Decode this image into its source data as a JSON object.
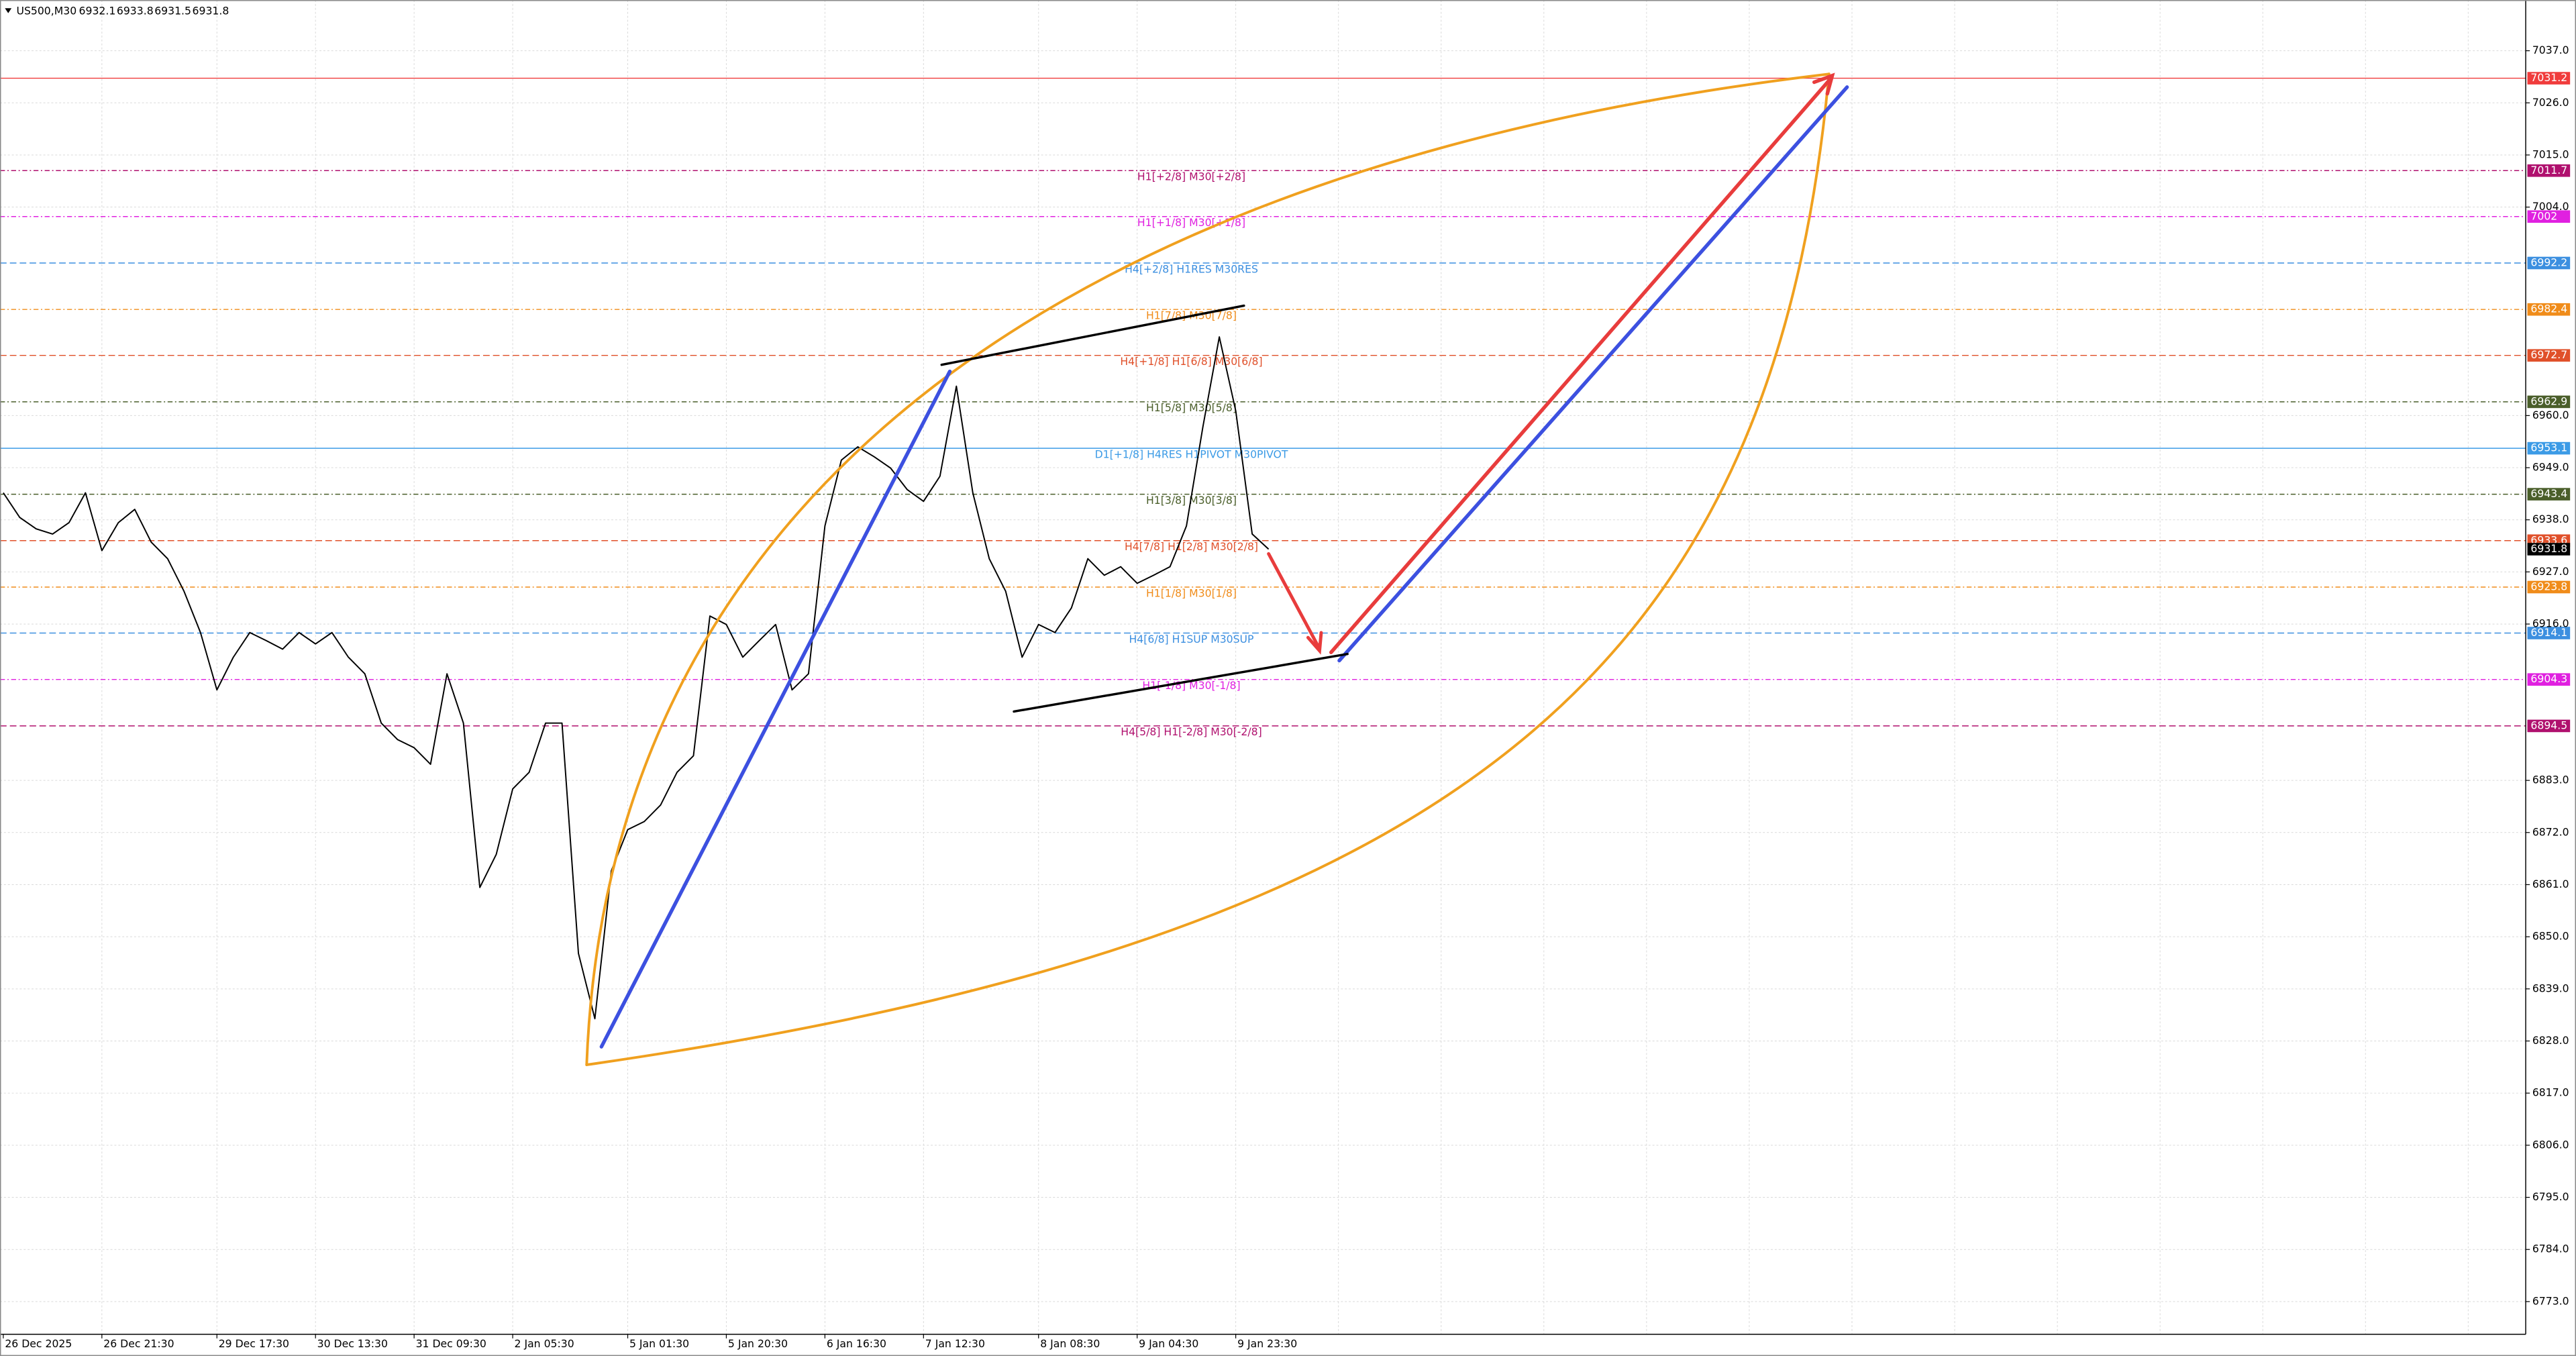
{
  "chart_data": {
    "type": "line",
    "symbol": "US500,M30",
    "ohlc": [
      6932.1,
      6933.8,
      6931.5,
      6931.8
    ],
    "categories": [
      "26 Dec 2025",
      null,
      null,
      null,
      null,
      null,
      "26 Dec 21:30",
      null,
      null,
      null,
      null,
      null,
      null,
      "29 Dec 17:30",
      null,
      null,
      null,
      null,
      null,
      "30 Dec 13:30",
      null,
      null,
      null,
      null,
      null,
      "31 Dec 09:30",
      null,
      null,
      null,
      null,
      null,
      "2 Jan 05:30",
      null,
      null,
      null,
      null,
      null,
      null,
      "5 Jan 01:30",
      null,
      null,
      null,
      null,
      null,
      "5 Jan 20:30",
      null,
      null,
      null,
      null,
      null,
      "6 Jan 16:30",
      null,
      null,
      null,
      null,
      null,
      "7 Jan 12:30",
      null,
      null,
      null,
      null,
      null,
      null,
      "8 Jan 08:30",
      null,
      null,
      null,
      null,
      null,
      "9 Jan 04:30",
      null,
      null,
      null,
      null,
      null,
      "9 Jan 23:30",
      null,
      null
    ],
    "series": [
      {
        "name": "US500,M30",
        "color": "#000000",
        "values": [
          6943.7,
          6938.5,
          6936.1,
          6935.0,
          6937.4,
          6943.7,
          6931.5,
          6937.4,
          6940.2,
          6933.3,
          6929.8,
          6922.9,
          6914.2,
          6902.1,
          6909.0,
          6914.2,
          6912.5,
          6910.7,
          6914.2,
          6911.8,
          6914.2,
          6909.0,
          6905.5,
          6895.1,
          6891.6,
          6889.9,
          6886.4,
          6905.5,
          6895.1,
          6860.4,
          6867.4,
          6881.2,
          6884.7,
          6895.1,
          6895.1,
          6846.5,
          6832.7,
          6863.9,
          6872.6,
          6874.3,
          6877.8,
          6884.7,
          6888.2,
          6917.7,
          6915.9,
          6909.0,
          6912.5,
          6915.9,
          6902.1,
          6905.5,
          6936.7,
          6950.6,
          6953.4,
          6951.3,
          6948.9,
          6944.4,
          6941.9,
          6947.2,
          6966.2,
          6943.7,
          6929.8,
          6922.9,
          6909.0,
          6915.9,
          6914.2,
          6919.4,
          6929.8,
          6926.3,
          6928.1,
          6924.6,
          6926.3,
          6928.1,
          6936.7,
          6957.6,
          6976.6,
          6961.0,
          6935.0,
          6931.8
        ]
      }
    ],
    "ylim": [
      6766.1,
      7047.7
    ],
    "yticks": [
      {
        "value": 7037,
        "label": "7037.0"
      },
      {
        "value": 7026,
        "label": "7026.0"
      },
      {
        "value": 7015,
        "label": "7015.0"
      },
      {
        "value": 7004,
        "label": "7004.0"
      },
      {
        "value": 6960,
        "label": "6960.0"
      },
      {
        "value": 6949,
        "label": "6949.0"
      },
      {
        "value": 6938,
        "label": "6938.0"
      },
      {
        "value": 6927,
        "label": "6927.0"
      },
      {
        "value": 6916,
        "label": "6916.0"
      },
      {
        "value": 6883,
        "label": "6883.0"
      },
      {
        "value": 6872,
        "label": "6872.0"
      },
      {
        "value": 6861,
        "label": "6861.0"
      },
      {
        "value": 6850,
        "label": "6850.0"
      },
      {
        "value": 6839,
        "label": "6839.0"
      },
      {
        "value": 6828,
        "label": "6828.0"
      },
      {
        "value": 6817,
        "label": "6817.0"
      },
      {
        "value": 6806,
        "label": "6806.0"
      },
      {
        "value": 6795,
        "label": "6795.0"
      },
      {
        "value": 6784,
        "label": "6784.0"
      },
      {
        "value": 6773,
        "label": "6773.0"
      }
    ],
    "grid": true,
    "levels": [
      {
        "name": null,
        "value": 7031.2,
        "color": "#f03c3c",
        "dash": "none"
      },
      {
        "name": "H1[+2/8] M30[+2/8]",
        "value": 7011.7,
        "color": "#b0106e",
        "dash": "3 1.5 0.8 1.5"
      },
      {
        "name": "H1[+1/8] M30[+1/8]",
        "value": 7002.0,
        "color": "#e020e0",
        "dash": "3 1.5 0.8 1.5"
      },
      {
        "name": "H4[+2/8] H1RES M30RES",
        "value": 6992.2,
        "color": "#3c8fe0",
        "dash": "4 2"
      },
      {
        "name": "H1[7/8] M30[7/8]",
        "value": 6982.4,
        "color": "#f08c1a",
        "dash": "3 1.5 0.8 1.5"
      },
      {
        "name": "H4[+1/8] H1[6/8] M30[6/8]",
        "value": 6972.7,
        "color": "#e0502a",
        "dash": "4 2"
      },
      {
        "name": "H1[5/8] M30[5/8]",
        "value": 6962.9,
        "color": "#4a5e2a",
        "dash": "3 1.5 0.8 1.5"
      },
      {
        "name": "D1[+1/8] H4RES H1PIVOT M30PIVOT",
        "value": 6953.1,
        "color": "#3c9be6",
        "dash": "none"
      },
      {
        "name": "H1[3/8] M30[3/8]",
        "value": 6943.4,
        "color": "#4a5e2a",
        "dash": "3 1.5 0.8 1.5"
      },
      {
        "name": "H4[7/8] H1[2/8] M30[2/8]",
        "value": 6933.6,
        "color": "#e0502a",
        "dash": "4 2"
      },
      {
        "name": "H1[1/8] M30[1/8]",
        "value": 6923.8,
        "color": "#f08c1a",
        "dash": "3 1.5 0.8 1.5"
      },
      {
        "name": "H4[6/8] H1SUP M30SUP",
        "value": 6914.1,
        "color": "#3c8fe0",
        "dash": "4 2"
      },
      {
        "name": "H1[-1/8] M30[-1/8]",
        "value": 6904.3,
        "color": "#e020e0",
        "dash": "3 1.5 0.8 1.5"
      },
      {
        "name": "H4[5/8] H1[-2/8] M30[-2/8]",
        "value": 6894.5,
        "color": "#b0106e",
        "dash": "4 2"
      }
    ]
  }
}
